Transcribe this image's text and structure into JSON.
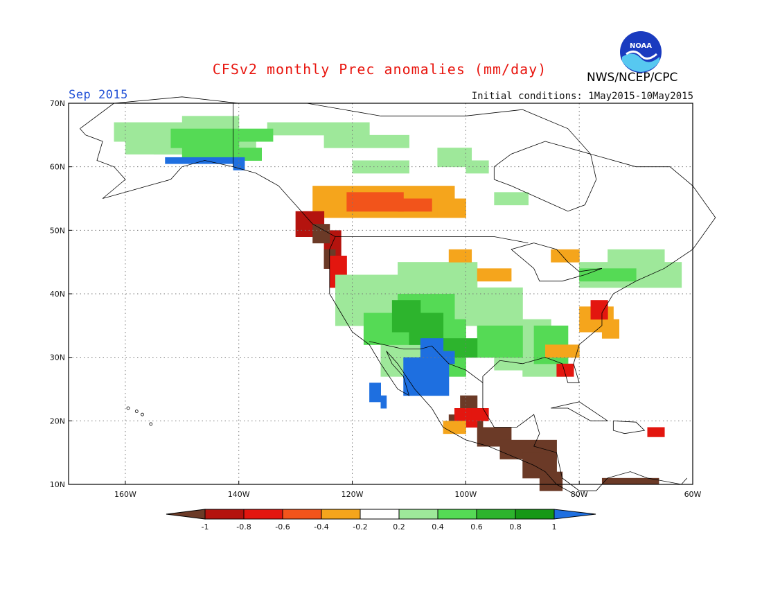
{
  "header": {
    "title": "CFSv2 monthly Prec anomalies (mm/day)",
    "month": "Sep 2015",
    "initial_conditions": "Initial conditions: 1May2015-10May2015",
    "org": "NWS/NCEP/CPC",
    "logo_text": "NOAA"
  },
  "map": {
    "lat_labels": [
      "70N",
      "60N",
      "50N",
      "40N",
      "30N",
      "20N",
      "10N"
    ],
    "lon_labels": [
      "160W",
      "140W",
      "120W",
      "100W",
      "80W",
      "60W"
    ],
    "lon_range": [
      -170,
      -60
    ],
    "lat_range": [
      10,
      70
    ]
  },
  "legend": {
    "tick_labels": [
      "-1",
      "-0.8",
      "-0.6",
      "-0.4",
      "-0.2",
      "0.2",
      "0.4",
      "0.6",
      "0.8",
      "1"
    ],
    "colors": [
      "#6b3a27",
      "#b4130e",
      "#e3160f",
      "#f2541b",
      "#f5a51c",
      "#ffffff",
      "#9ee89a",
      "#55da55",
      "#2db42d",
      "#169816",
      "#1e6fe0"
    ]
  },
  "colors": {
    "land_outline": "#000000",
    "grid": "#666666",
    "title_red": "#e8150e",
    "month_blue": "#1f4fd6"
  }
}
